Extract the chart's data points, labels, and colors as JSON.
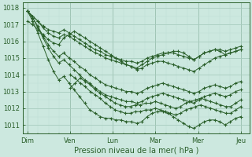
{
  "xlabel": "Pression niveau de la mer( hPa )",
  "ylim": [
    1010.5,
    1018.3
  ],
  "yticks": [
    1011,
    1012,
    1013,
    1014,
    1015,
    1016,
    1017,
    1018
  ],
  "xtick_labels": [
    "Dim",
    "Ven",
    "Lun",
    "Mar",
    "Mer",
    "Jeu"
  ],
  "xtick_positions": [
    0,
    1,
    2,
    3,
    4,
    5
  ],
  "bg_color": "#cce8df",
  "line_color": "#2a5f2a",
  "grid_major_color": "#a8ccbe",
  "grid_minor_color": "#bcddd4",
  "figsize": [
    3.2,
    2.0
  ],
  "dpi": 100,
  "series": [
    {
      "start_x": 0,
      "points": [
        1017.8,
        1017.5,
        1017.2,
        1016.8,
        1016.5,
        1016.3,
        1016.2,
        1016.4,
        1016.3,
        1016.1,
        1015.9,
        1015.7,
        1015.5,
        1015.3,
        1015.2,
        1015.0,
        1014.9,
        1014.8,
        1014.7,
        1014.6,
        1014.5,
        1014.4,
        1014.6,
        1014.8,
        1015.0,
        1015.1,
        1015.2,
        1015.3,
        1015.4,
        1015.4,
        1015.3,
        1015.1,
        1014.9,
        1015.1,
        1015.3,
        1015.4,
        1015.5,
        1015.4,
        1015.2,
        1015.3,
        1015.4,
        1015.5
      ]
    },
    {
      "start_x": 0,
      "points": [
        1017.8,
        1017.4,
        1016.9,
        1016.3,
        1015.8,
        1015.4,
        1015.1,
        1015.3,
        1015.0,
        1014.8,
        1014.5,
        1014.3,
        1014.0,
        1013.8,
        1013.6,
        1013.4,
        1013.3,
        1013.2,
        1013.1,
        1013.0,
        1013.0,
        1012.9,
        1013.0,
        1013.2,
        1013.3,
        1013.4,
        1013.5,
        1013.4,
        1013.3,
        1013.2,
        1013.1,
        1013.0,
        1012.9,
        1013.0,
        1013.2,
        1013.3,
        1013.4,
        1013.3,
        1013.2,
        1013.3,
        1013.5,
        1013.6
      ]
    },
    {
      "start_x": 0,
      "points": [
        1017.8,
        1017.2,
        1016.5,
        1015.7,
        1014.9,
        1014.2,
        1013.7,
        1013.9,
        1013.5,
        1013.1,
        1012.7,
        1012.3,
        1011.9,
        1011.7,
        1011.5,
        1011.4,
        1011.4,
        1011.3,
        1011.3,
        1011.2,
        1011.2,
        1011.1,
        1011.2,
        1011.5,
        1011.7,
        1011.8,
        1011.8,
        1011.7,
        1011.5,
        1011.3,
        1011.1,
        1010.9,
        1010.8,
        1011.0,
        1011.2,
        1011.3,
        1011.3,
        1011.2,
        1011.0,
        1011.2,
        1011.4,
        1011.5
      ]
    },
    {
      "start_x": 0,
      "points": [
        1017.8,
        1017.5,
        1017.2,
        1016.9,
        1016.7,
        1016.6,
        1016.5,
        1016.7,
        1016.5,
        1016.3,
        1016.1,
        1015.9,
        1015.7,
        1015.5,
        1015.4,
        1015.2,
        1015.1,
        1015.0,
        1014.9,
        1014.8,
        1014.8,
        1014.7,
        1014.8,
        1015.0,
        1015.1,
        1015.2,
        1015.3,
        1015.3,
        1015.3,
        1015.2,
        1015.1,
        1015.0,
        1014.9,
        1015.1,
        1015.3,
        1015.4,
        1015.5,
        1015.5,
        1015.4,
        1015.5,
        1015.6,
        1015.7
      ]
    },
    {
      "start_x": 0,
      "points": [
        1017.8,
        1017.4,
        1016.8,
        1016.2,
        1015.6,
        1015.1,
        1014.7,
        1014.9,
        1014.6,
        1014.3,
        1014.0,
        1013.7,
        1013.5,
        1013.2,
        1013.0,
        1012.8,
        1012.7,
        1012.6,
        1012.5,
        1012.4,
        1012.4,
        1012.3,
        1012.4,
        1012.6,
        1012.7,
        1012.8,
        1012.9,
        1012.8,
        1012.7,
        1012.6,
        1012.5,
        1012.4,
        1012.3,
        1012.5,
        1012.7,
        1012.8,
        1012.9,
        1012.8,
        1012.7,
        1012.8,
        1013.0,
        1013.1
      ]
    },
    {
      "start_x": 1,
      "points": [
        1014.0,
        1013.8,
        1013.5,
        1013.3,
        1013.0,
        1012.8,
        1012.6,
        1012.3,
        1012.1,
        1011.9,
        1011.8,
        1011.7,
        1011.7,
        1011.8,
        1011.8,
        1011.9,
        1011.9,
        1012.0,
        1011.9,
        1011.8,
        1011.7,
        1011.6,
        1011.7,
        1011.9,
        1012.0,
        1012.1,
        1012.2,
        1012.1,
        1012.0,
        1011.9,
        1011.8,
        1011.7,
        1011.7,
        1011.9,
        1012.1
      ]
    },
    {
      "start_x": 1,
      "points": [
        1013.2,
        1013.5,
        1013.8,
        1013.6,
        1013.4,
        1013.1,
        1012.9,
        1012.7,
        1012.5,
        1012.3,
        1012.2,
        1012.1,
        1012.1,
        1012.2,
        1012.2,
        1012.3,
        1012.3,
        1012.4,
        1012.3,
        1012.2,
        1012.1,
        1012.0,
        1012.1,
        1012.3,
        1012.4,
        1012.5,
        1012.6,
        1012.5,
        1012.4,
        1012.3,
        1012.2,
        1012.1,
        1012.1,
        1012.3,
        1012.5
      ]
    },
    {
      "start_x": 0,
      "points": [
        1017.2,
        1017.0,
        1016.7,
        1016.4,
        1016.1,
        1015.9,
        1015.8,
        1016.2,
        1016.4,
        1016.6,
        1016.4,
        1016.2,
        1016.0,
        1015.8,
        1015.6,
        1015.4,
        1015.2,
        1015.0,
        1014.8,
        1014.6,
        1014.5,
        1014.3,
        1014.4,
        1014.6,
        1014.7,
        1014.8,
        1014.8,
        1014.7,
        1014.6,
        1014.5,
        1014.4,
        1014.3,
        1014.2,
        1014.4,
        1014.6,
        1014.8,
        1015.0,
        1015.1,
        1015.2,
        1015.3,
        1015.4,
        1015.5
      ]
    }
  ]
}
